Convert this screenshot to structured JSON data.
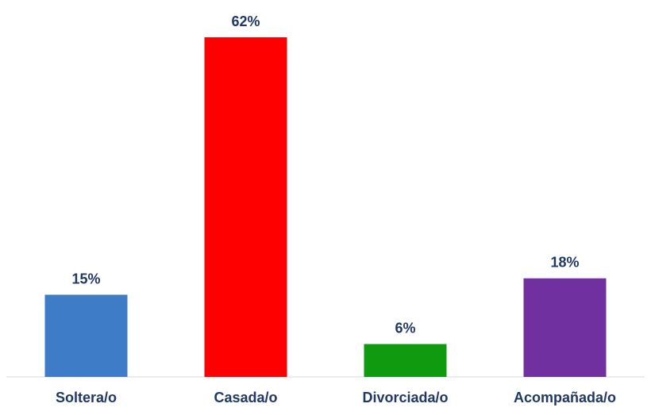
{
  "chart_data": {
    "type": "bar",
    "categories": [
      "Soltera/o",
      "Casada/o",
      "Divorciada/o",
      "Acompañada/o"
    ],
    "values": [
      15,
      62,
      6,
      18
    ],
    "value_labels": [
      "15%",
      "62%",
      "6%",
      "18%"
    ],
    "colors": [
      "#3f7cc7",
      "#ff0000",
      "#0f9a0f",
      "#7030a0"
    ],
    "title": "",
    "xlabel": "",
    "ylabel": "",
    "ylim": [
      0,
      62
    ],
    "grid": false,
    "legend": "none"
  },
  "colors": {
    "label_text": "#1f3864",
    "axis_line": "#d9d9d9"
  }
}
